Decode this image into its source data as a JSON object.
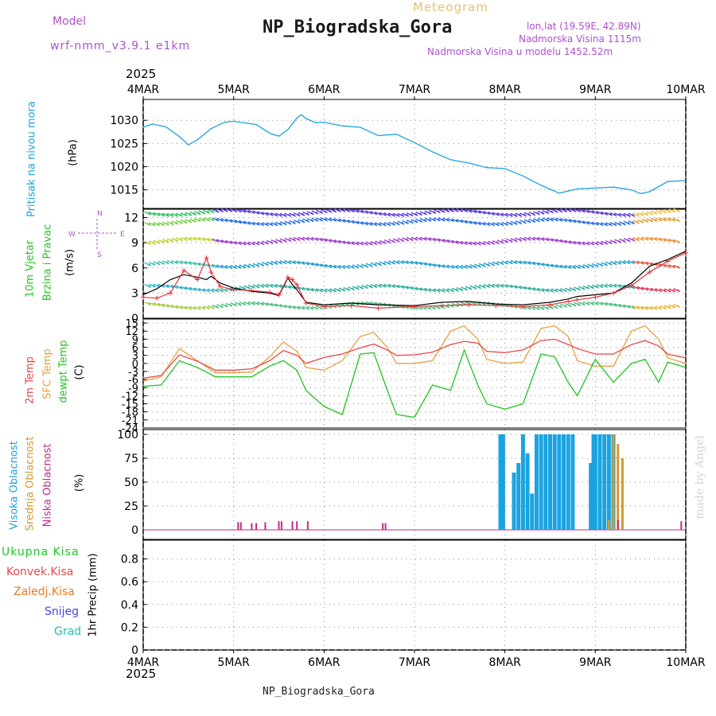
{
  "header": {
    "model_label": "Model",
    "model_name": "wrf-nmm_v3.9.1 e1km",
    "subtitle": "Meteogram",
    "title": "NP_Biogradska_Gora",
    "coords": "lon,lat (19.59E, 42.89N)",
    "elevation": "Nadmorska Visina 1115m",
    "model_elevation": "Nadmorska Visina u modelu 1452.52m",
    "year_top": "2025",
    "year_bottom": "2025",
    "footer_station": "NP_Biogradska_Gora",
    "watermark": "made by Angel"
  },
  "colors": {
    "pressure": "#1aa3e0",
    "wind_speed_red": "#e8303a",
    "wind_speed_black": "#000000",
    "temp_2m": "#e84848",
    "temp_sfc": "#e8a040",
    "dewpoint": "#22c422",
    "cloud_high": "#1aa3e0",
    "cloud_mid": "#d09a30",
    "cloud_low": "#c02a8a",
    "precip_total": "#22c422",
    "precip_conv": "#e84848",
    "precip_frozen": "#f07820",
    "precip_snow": "#4848e0",
    "precip_grad": "#20c0b0",
    "model_text": "#b050d0",
    "grid": "#8a8a8a"
  },
  "time_axis": {
    "labels": [
      "4MAR",
      "5MAR",
      "6MAR",
      "7MAR",
      "8MAR",
      "9MAR",
      "10MAR"
    ],
    "unit": "days"
  },
  "panels": {
    "pressure": {
      "label_main": "Pritisak na nivou mora",
      "unit": "(hPa)",
      "ticks": [
        "1030",
        "1025",
        "1020",
        "1015"
      ]
    },
    "wind": {
      "label_main": "10m Vjetar",
      "label_sub": "Brzina i Pravac",
      "unit": "(m/s)",
      "ticks": [
        "12",
        "9",
        "6",
        "3",
        "0"
      ],
      "compass": [
        "N",
        "W",
        "E",
        "S"
      ]
    },
    "temp": {
      "label_1": "2m Temp",
      "label_2": "SFC Temp",
      "label_3": "dewpt Temp",
      "unit": "(C)",
      "ticks": [
        "15",
        "12",
        "9",
        "6",
        "3",
        "0",
        "-3",
        "-6",
        "-9",
        "-12",
        "-15",
        "-18",
        "-21",
        "-24"
      ]
    },
    "cloud": {
      "label_1": "Visoka Oblacnost",
      "label_2": "Srednja Oblacnost",
      "label_3": "Niska Oblacnost",
      "unit": "(%)",
      "ticks": [
        "100",
        "75",
        "50",
        "25",
        "0"
      ]
    },
    "precip": {
      "label_1": "Ukupna Kisa",
      "label_2": "Konvek.Kisa",
      "label_3": "Zaledj.Kisa",
      "label_4": "Snijeg",
      "label_5": "Grad",
      "unit": "1hr Precip (mm)",
      "ticks": [
        "0.8",
        "0.6",
        "0.4",
        "0.2",
        "0"
      ]
    }
  },
  "chart_data": [
    {
      "type": "line",
      "name": "pressure",
      "ylabel": "Pritisak na nivou mora (hPa)",
      "ylim": [
        1011,
        1034.5
      ],
      "x": [
        0,
        0.1,
        0.25,
        0.4,
        0.5,
        0.6,
        0.75,
        0.9,
        1.0,
        1.1,
        1.25,
        1.4,
        1.5,
        1.6,
        1.7,
        1.75,
        1.8,
        1.9,
        2.0,
        2.2,
        2.4,
        2.5,
        2.6,
        2.8,
        3.0,
        3.2,
        3.4,
        3.6,
        3.8,
        4.0,
        4.2,
        4.4,
        4.6,
        4.8,
        5.0,
        5.2,
        5.4,
        5.5,
        5.6,
        5.8,
        6.0
      ],
      "series": [
        {
          "values": [
            1028.5,
            1029.2,
            1028.6,
            1026.5,
            1024.7,
            1025.8,
            1028.2,
            1029.6,
            1029.8,
            1029.5,
            1029.1,
            1027.2,
            1026.6,
            1028.0,
            1030.5,
            1031.2,
            1030.4,
            1029.5,
            1029.6,
            1028.8,
            1028.5,
            1027.6,
            1026.7,
            1027.0,
            1025.2,
            1023.2,
            1021.5,
            1020.8,
            1019.8,
            1019.6,
            1018.0,
            1016.0,
            1014.3,
            1015.2,
            1015.4,
            1015.6,
            1015.0,
            1014.2,
            1014.6,
            1016.8,
            1017.0
          ]
        }
      ]
    },
    {
      "type": "line",
      "name": "wind",
      "ylabel": "10m Vjetar Brzina i Pravac (m/s)",
      "ylim": [
        0,
        13
      ],
      "x": [
        0,
        0.15,
        0.3,
        0.45,
        0.6,
        0.7,
        0.75,
        0.85,
        1.0,
        1.2,
        1.4,
        1.5,
        1.6,
        1.65,
        1.7,
        1.8,
        2.0,
        2.3,
        2.6,
        3.0,
        3.3,
        3.6,
        3.9,
        4.2,
        4.5,
        4.7,
        4.8,
        5.0,
        5.2,
        5.4,
        5.6,
        5.8,
        6.0
      ],
      "series": [
        {
          "name": "red",
          "values": [
            2.5,
            2.4,
            3.0,
            5.7,
            4.6,
            7.2,
            5.5,
            3.8,
            3.4,
            3.3,
            3.1,
            2.8,
            4.9,
            4.6,
            4.0,
            1.8,
            1.4,
            1.5,
            1.2,
            1.4,
            1.5,
            1.6,
            1.5,
            1.4,
            1.6,
            2.0,
            2.2,
            2.5,
            3.0,
            3.9,
            5.5,
            6.8,
            7.8
          ]
        },
        {
          "name": "black",
          "values": [
            2.8,
            3.5,
            4.6,
            5.2,
            4.9,
            4.6,
            5.0,
            4.2,
            3.6,
            3.2,
            3.0,
            2.7,
            4.8,
            4.0,
            3.4,
            1.9,
            1.6,
            1.8,
            1.6,
            1.5,
            1.9,
            2.0,
            1.7,
            1.6,
            1.9,
            2.3,
            2.6,
            2.8,
            3.0,
            4.2,
            6.2,
            7.0,
            8.0
          ]
        }
      ]
    },
    {
      "type": "line",
      "name": "temperature",
      "ylabel": "Temp (C)",
      "ylim": [
        -24,
        16.5
      ],
      "x": [
        0,
        0.2,
        0.4,
        0.6,
        0.8,
        1.0,
        1.2,
        1.4,
        1.55,
        1.7,
        1.8,
        2.0,
        2.2,
        2.4,
        2.55,
        2.7,
        2.8,
        3.0,
        3.2,
        3.4,
        3.55,
        3.7,
        3.8,
        4.0,
        4.2,
        4.4,
        4.55,
        4.7,
        4.8,
        5.0,
        5.2,
        5.4,
        5.55,
        5.7,
        5.8,
        6.0
      ],
      "series": [
        {
          "name": "2m",
          "values": [
            -5.5,
            -4.5,
            3.2,
            0.8,
            -2.5,
            -2.5,
            -2.0,
            1.0,
            4.8,
            3.0,
            0.0,
            2.2,
            3.5,
            5.8,
            7.2,
            5.0,
            3.0,
            3.2,
            4.2,
            7.0,
            8.2,
            7.5,
            4.5,
            4.0,
            5.0,
            8.5,
            9.0,
            7.0,
            5.5,
            3.5,
            3.5,
            7.0,
            8.5,
            6.5,
            3.5,
            2.0
          ]
        },
        {
          "name": "sfc",
          "values": [
            -6.5,
            -5.0,
            5.5,
            1.0,
            -3.5,
            -3.5,
            -3.2,
            2.5,
            8.0,
            4.5,
            -1.5,
            -2.5,
            1.0,
            10.0,
            11.5,
            6.0,
            0.0,
            0.0,
            1.0,
            12.0,
            14.0,
            9.0,
            1.5,
            0.0,
            0.5,
            13.0,
            14.0,
            10.0,
            1.0,
            -1.0,
            -1.0,
            12.0,
            14.0,
            9.0,
            2.0,
            0.0
          ]
        },
        {
          "name": "dewpt",
          "values": [
            -8.5,
            -8.0,
            1.0,
            -1.5,
            -5.0,
            -5.0,
            -5.0,
            -1.0,
            1.0,
            -2.5,
            -10.0,
            -16.0,
            -19.0,
            3.5,
            4.0,
            -10.0,
            -19.0,
            -20.0,
            -8.0,
            -10.0,
            5.0,
            -8.0,
            -15.0,
            -17.0,
            -15.0,
            3.5,
            2.5,
            -7.0,
            -12.0,
            1.5,
            -7.0,
            0.0,
            1.5,
            -7.0,
            0.5,
            -1.5
          ]
        }
      ]
    },
    {
      "type": "bar",
      "name": "cloud",
      "ylabel": "Oblacnost (%)",
      "ylim": [
        -10,
        105
      ],
      "series": [
        {
          "name": "high",
          "x": [
            3.95,
            3.98,
            4.1,
            4.15,
            4.2,
            4.25,
            4.3,
            4.35,
            4.4,
            4.45,
            4.5,
            4.55,
            4.6,
            4.65,
            4.7,
            4.75,
            4.95,
            4.98,
            5.0,
            5.05,
            5.1,
            5.15,
            5.2
          ],
          "values": [
            100,
            100,
            60,
            70,
            100,
            80,
            38,
            100,
            100,
            100,
            100,
            100,
            100,
            100,
            100,
            100,
            70,
            100,
            100,
            100,
            100,
            100,
            100
          ]
        },
        {
          "name": "mid",
          "x": [
            5.15,
            5.2,
            5.25,
            5.3
          ],
          "values": [
            10,
            100,
            90,
            75
          ]
        },
        {
          "name": "low",
          "x": [
            1.05,
            1.08,
            1.2,
            1.25,
            1.35,
            1.5,
            1.53,
            1.65,
            1.7,
            1.82,
            2.65,
            2.68,
            5.25,
            5.95
          ],
          "values": [
            8,
            8,
            7,
            7,
            8,
            9,
            9,
            9,
            9,
            9,
            7,
            7,
            10,
            9
          ]
        }
      ]
    },
    {
      "type": "bar",
      "name": "precip",
      "ylabel": "1hr Precip (mm)",
      "ylim": [
        0,
        1.0
      ],
      "series": [
        {
          "name": "Ukupna Kisa",
          "values": []
        }
      ]
    }
  ]
}
